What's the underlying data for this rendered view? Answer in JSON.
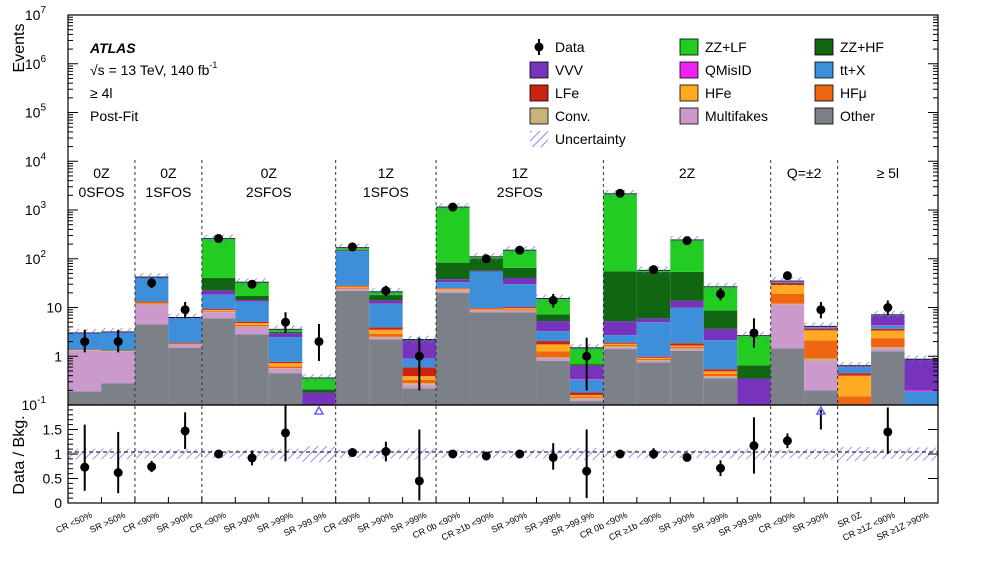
{
  "chart_data": {
    "type": "stacked-bar",
    "annotations": {
      "experiment": "ATLAS",
      "energy": "√s = 13 TeV, 140 fb",
      "energy_sup": "-1",
      "selection": "≥ 4l",
      "stage": "Post-Fit"
    },
    "upper_panel": {
      "ylabel": "Events",
      "yscale": "log",
      "ylim": [
        0.1,
        10000000
      ],
      "yticks": [
        {
          "label": "10",
          "sup": "-1",
          "v": 0.1
        },
        {
          "label": "1",
          "sup": "",
          "v": 1
        },
        {
          "label": "10",
          "sup": "",
          "v": 10
        },
        {
          "label": "10",
          "sup": "2",
          "v": 100
        },
        {
          "label": "10",
          "sup": "3",
          "v": 1000
        },
        {
          "label": "10",
          "sup": "4",
          "v": 10000
        },
        {
          "label": "10",
          "sup": "5",
          "v": 100000
        },
        {
          "label": "10",
          "sup": "6",
          "v": 1000000
        },
        {
          "label": "10",
          "sup": "7",
          "v": 10000000
        }
      ]
    },
    "lower_panel": {
      "ylabel": "Data / Bkg.",
      "ylim": [
        0,
        2
      ],
      "yticks": [
        "0",
        "0.5",
        "1",
        "1.5"
      ]
    },
    "legend": [
      {
        "key": "Data",
        "label": "Data",
        "kind": "marker"
      },
      {
        "key": "ZZLF",
        "label": "ZZ+LF",
        "kind": "fill"
      },
      {
        "key": "ZZHF",
        "label": "ZZ+HF",
        "kind": "fill"
      },
      {
        "key": "VVV",
        "label": "VVV",
        "kind": "fill"
      },
      {
        "key": "QMisID",
        "label": "QMisID",
        "kind": "fill"
      },
      {
        "key": "ttX",
        "label": "tt+X",
        "kind": "fill"
      },
      {
        "key": "LFe",
        "label": "LFe",
        "kind": "fill"
      },
      {
        "key": "HFe",
        "label": "HFe",
        "kind": "fill"
      },
      {
        "key": "HFmu",
        "label": "HFμ",
        "kind": "fill"
      },
      {
        "key": "Conv",
        "label": "Conv.",
        "kind": "fill"
      },
      {
        "key": "Multifakes",
        "label": "Multifakes",
        "kind": "fill"
      },
      {
        "key": "Other",
        "label": "Other",
        "kind": "fill"
      },
      {
        "key": "Unc",
        "label": "Uncertainty",
        "kind": "hatch"
      }
    ],
    "colors": {
      "Other": "#7b8089",
      "Multifakes": "#cc99cc",
      "Conv": "#c8b47a",
      "HFmu": "#ee6611",
      "HFe": "#ffaa22",
      "LFe": "#cc2211",
      "ttX": "#3d8fd9",
      "QMisID": "#ee22ee",
      "VVV": "#7733bb",
      "ZZHF": "#116611",
      "ZZLF": "#22cc22",
      "Unc": "#6666ee"
    },
    "stack_order": [
      "Other",
      "Multifakes",
      "Conv",
      "HFmu",
      "HFe",
      "LFe",
      "ttX",
      "QMisID",
      "VVV",
      "ZZHF",
      "ZZLF"
    ],
    "regions": [
      {
        "line1": "0Z",
        "line2": "0SFOS",
        "bins": [
          0,
          1
        ]
      },
      {
        "line1": "0Z",
        "line2": "1SFOS",
        "bins": [
          2,
          3
        ]
      },
      {
        "line1": "0Z",
        "line2": "2SFOS",
        "bins": [
          4,
          5,
          6,
          7
        ]
      },
      {
        "line1": "1Z",
        "line2": "1SFOS",
        "bins": [
          8,
          9,
          10
        ]
      },
      {
        "line1": "1Z",
        "line2": "2SFOS",
        "bins": [
          11,
          12,
          13,
          14,
          15
        ]
      },
      {
        "line1": "2Z",
        "line2": "",
        "bins": [
          16,
          17,
          18,
          19,
          20
        ]
      },
      {
        "line1": "Q=±2",
        "line2": "",
        "bins": [
          21,
          22
        ]
      },
      {
        "line1": "≥ 5l",
        "line2": "",
        "bins": [
          23,
          24,
          25
        ]
      }
    ],
    "bins": [
      {
        "label": "CR <50%",
        "data": 2,
        "data_err": [
          1.2,
          3.5
        ],
        "ratio": 0.73,
        "ratio_err": [
          0.25,
          1.6
        ],
        "c": {
          "Other": 0.19,
          "Multifakes": 1.1,
          "Conv": 0.02,
          "HFmu": 0.02,
          "HFe": 0.02,
          "LFe": 0.02,
          "ttX": 1.6,
          "QMisID": 0.01,
          "VVV": 0.02,
          "ZZHF": 0.01,
          "ZZLF": 0.01
        }
      },
      {
        "label": "SR >50%",
        "data": 2,
        "data_err": [
          1.2,
          3.5
        ],
        "ratio": 0.62,
        "ratio_err": [
          0.2,
          1.45
        ],
        "c": {
          "Other": 0.28,
          "Multifakes": 0.95,
          "Conv": 0.02,
          "HFmu": 0.02,
          "HFe": 0.02,
          "LFe": 0.02,
          "ttX": 1.8,
          "QMisID": 0.01,
          "VVV": 0.02,
          "ZZHF": 0.01,
          "ZZLF": 0.01
        }
      },
      {
        "label": "CR <90%",
        "data": 32,
        "data_err": [
          25,
          40
        ],
        "ratio": 0.74,
        "ratio_err": [
          0.63,
          0.86
        ],
        "c": {
          "Other": 4.5,
          "Multifakes": 7.0,
          "Conv": 0.2,
          "HFmu": 0.4,
          "HFe": 0.5,
          "LFe": 0.6,
          "ttX": 28,
          "QMisID": 0.1,
          "VVV": 0.4,
          "ZZHF": 0.1,
          "ZZLF": 0.3
        }
      },
      {
        "label": "SR >90%",
        "data": 9,
        "data_err": [
          6,
          13
        ],
        "ratio": 1.47,
        "ratio_err": [
          1.1,
          1.85
        ],
        "c": {
          "Other": 1.5,
          "Multifakes": 0.2,
          "Conv": 0.02,
          "HFmu": 0.05,
          "HFe": 0.05,
          "LFe": 0.05,
          "ttX": 4.3,
          "QMisID": 0.01,
          "VVV": 0.05,
          "ZZHF": 0.01,
          "ZZLF": 0.02
        }
      },
      {
        "label": "CR <90%",
        "data": 260,
        "data_err": [
          240,
          280
        ],
        "ratio": 1.0,
        "ratio_err": [
          0.94,
          1.06
        ],
        "c": {
          "Other": 6,
          "Multifakes": 2,
          "Conv": 0.2,
          "HFmu": 0.3,
          "HFe": 0.4,
          "LFe": 0.4,
          "ttX": 9,
          "QMisID": 0.1,
          "VVV": 4,
          "ZZHF": 18,
          "ZZLF": 220
        }
      },
      {
        "label": "SR >90%",
        "data": 30,
        "data_err": [
          25,
          36
        ],
        "ratio": 0.92,
        "ratio_err": [
          0.77,
          1.07
        ],
        "c": {
          "Other": 2.8,
          "Multifakes": 1.2,
          "Conv": 0.1,
          "HFmu": 0.3,
          "HFe": 0.4,
          "LFe": 0.3,
          "ttX": 8,
          "QMisID": 0.1,
          "VVV": 1.0,
          "ZZHF": 3,
          "ZZLF": 16
        }
      },
      {
        "label": "SR >99%",
        "data": 5,
        "data_err": [
          3,
          8
        ],
        "ratio": 1.43,
        "ratio_err": [
          0.85,
          2.0
        ],
        "c": {
          "Other": 0.45,
          "Multifakes": 0.1,
          "Conv": 0.02,
          "HFmu": 0.05,
          "HFe": 0.1,
          "LFe": 0.05,
          "ttX": 1.7,
          "QMisID": 0.01,
          "VVV": 0.5,
          "ZZHF": 0.2,
          "ZZLF": 0.4
        }
      },
      {
        "label": "SR >99.9%",
        "data": 2,
        "data_err": [
          0.8,
          4.6
        ],
        "ratio": null,
        "ratio_err": null,
        "arrow": true,
        "c": {
          "Other": 0.02,
          "Multifakes": 0.01,
          "Conv": 0.01,
          "HFmu": 0.01,
          "HFe": 0.01,
          "LFe": 0.01,
          "ttX": 0.02,
          "QMisID": 0.01,
          "VVV": 0.08,
          "ZZHF": 0.03,
          "ZZLF": 0.15
        }
      },
      {
        "label": "CR <90%",
        "data": 175,
        "data_err": [
          160,
          190
        ],
        "ratio": 1.03,
        "ratio_err": [
          0.96,
          1.1
        ],
        "c": {
          "Other": 22,
          "Multifakes": 2,
          "Conv": 0.5,
          "HFmu": 1,
          "HFe": 1.5,
          "LFe": 1,
          "ttX": 115,
          "QMisID": 0.2,
          "VVV": 3,
          "ZZHF": 6,
          "ZZLF": 17
        }
      },
      {
        "label": "SR >90%",
        "data": 22,
        "data_err": [
          17,
          28
        ],
        "ratio": 1.05,
        "ratio_err": [
          0.85,
          1.25
        ],
        "c": {
          "Other": 2.2,
          "Multifakes": 0.2,
          "Conv": 0.1,
          "HFmu": 0.4,
          "HFe": 0.6,
          "LFe": 0.4,
          "ttX": 8,
          "QMisID": 0.1,
          "VVV": 2,
          "ZZHF": 4,
          "ZZLF": 3
        }
      },
      {
        "label": "SR >99%",
        "data": 1,
        "data_err": [
          0.2,
          2.4
        ],
        "ratio": 0.45,
        "ratio_err": [
          0.05,
          1.5
        ],
        "c": {
          "Other": 0.22,
          "Multifakes": 0.04,
          "Conv": 0.02,
          "HFmu": 0.05,
          "HFe": 0.06,
          "LFe": 0.2,
          "ttX": 0.3,
          "QMisID": 0.01,
          "VVV": 1.2,
          "ZZHF": 0.05,
          "ZZLF": 0.05
        }
      },
      {
        "label": "CR 0b <90%",
        "data": 1150,
        "data_err": [
          1100,
          1200
        ],
        "ratio": 1.0,
        "ratio_err": [
          0.97,
          1.03
        ],
        "c": {
          "Other": 20,
          "Multifakes": 2,
          "Conv": 1,
          "HFmu": 0.5,
          "HFe": 1,
          "LFe": 0.5,
          "ttX": 8,
          "QMisID": 0.1,
          "VVV": 5,
          "ZZHF": 45,
          "ZZLF": 1070
        }
      },
      {
        "label": "CR ≥1b <90%",
        "data": 100,
        "data_err": [
          90,
          110
        ],
        "ratio": 0.96,
        "ratio_err": [
          0.9,
          1.02
        ],
        "c": {
          "Other": 8,
          "Multifakes": 0.5,
          "Conv": 0.3,
          "HFmu": 0.3,
          "HFe": 0.3,
          "LFe": 0.3,
          "ttX": 45,
          "QMisID": 0.1,
          "VVV": 2,
          "ZZHF": 45,
          "ZZLF": 8
        }
      },
      {
        "label": "SR >90%",
        "data": 150,
        "data_err": [
          138,
          162
        ],
        "ratio": 1.0,
        "ratio_err": [
          0.93,
          1.07
        ],
        "c": {
          "Other": 8,
          "Multifakes": 0.5,
          "Conv": 0.2,
          "HFmu": 0.5,
          "HFe": 0.5,
          "LFe": 0.5,
          "ttX": 20,
          "QMisID": 0.1,
          "VVV": 10,
          "ZZHF": 25,
          "ZZLF": 85
        }
      },
      {
        "label": "SR >99%",
        "data": 14,
        "data_err": [
          10,
          19
        ],
        "ratio": 0.93,
        "ratio_err": [
          0.68,
          1.22
        ],
        "c": {
          "Other": 0.8,
          "Multifakes": 0.1,
          "Conv": 0.05,
          "HFmu": 0.3,
          "HFe": 0.5,
          "LFe": 0.3,
          "ttX": 1.2,
          "QMisID": 0.02,
          "VVV": 2,
          "ZZHF": 2,
          "ZZLF": 8
        }
      },
      {
        "label": "SR >99.9%",
        "data": 1,
        "data_err": [
          0.2,
          2.4
        ],
        "ratio": 0.65,
        "ratio_err": [
          0.1,
          1.5
        ],
        "c": {
          "Other": 0.12,
          "Multifakes": 0.01,
          "Conv": 0.01,
          "HFmu": 0.01,
          "HFe": 0.01,
          "LFe": 0.02,
          "ttX": 0.15,
          "QMisID": 0.01,
          "VVV": 0.3,
          "ZZHF": 0.05,
          "ZZLF": 0.8
        }
      },
      {
        "label": "CR 0b <90%",
        "data": 2200,
        "data_err": [
          2100,
          2300
        ],
        "ratio": 1.0,
        "ratio_err": [
          0.97,
          1.03
        ],
        "c": {
          "Other": 1.4,
          "Multifakes": 0.1,
          "Conv": 0.1,
          "HFmu": 0.1,
          "HFe": 0.1,
          "LFe": 0.1,
          "ttX": 0.8,
          "QMisID": 0.01,
          "VVV": 2.5,
          "ZZHF": 50,
          "ZZLF": 2100
        }
      },
      {
        "label": "CR ≥1b <90%",
        "data": 60,
        "data_err": [
          52,
          68
        ],
        "ratio": 1.0,
        "ratio_err": [
          0.9,
          1.12
        ],
        "c": {
          "Other": 0.75,
          "Multifakes": 0.05,
          "Conv": 0.03,
          "HFmu": 0.05,
          "HFe": 0.05,
          "LFe": 0.05,
          "ttX": 4,
          "QMisID": 0.01,
          "VVV": 1,
          "ZZHF": 48,
          "ZZLF": 4
        }
      },
      {
        "label": "SR >90%",
        "data": 235,
        "data_err": [
          220,
          250
        ],
        "ratio": 0.93,
        "ratio_err": [
          0.88,
          0.98
        ],
        "c": {
          "Other": 1.3,
          "Multifakes": 0.1,
          "Conv": 0.05,
          "HFmu": 0.1,
          "HFe": 0.1,
          "LFe": 0.2,
          "ttX": 8,
          "QMisID": 0.01,
          "VVV": 4,
          "ZZHF": 40,
          "ZZLF": 190
        }
      },
      {
        "label": "SR >99%",
        "data": 19,
        "data_err": [
          14,
          25
        ],
        "ratio": 0.71,
        "ratio_err": [
          0.55,
          0.87
        ],
        "c": {
          "Other": 0.35,
          "Multifakes": 0.02,
          "Conv": 0.02,
          "HFmu": 0.05,
          "HFe": 0.05,
          "LFe": 0.05,
          "ttX": 1.6,
          "QMisID": 0.01,
          "VVV": 1.5,
          "ZZHF": 5,
          "ZZLF": 18
        }
      },
      {
        "label": "SR >99.9%",
        "data": 3,
        "data_err": [
          1.5,
          6
        ],
        "ratio": 1.17,
        "ratio_err": [
          0.6,
          1.75
        ],
        "c": {
          "Other": 0.02,
          "Multifakes": 0.01,
          "Conv": 0.01,
          "HFmu": 0.01,
          "HFe": 0.01,
          "LFe": 0.01,
          "ttX": 0.02,
          "QMisID": 0.01,
          "VVV": 0.25,
          "ZZHF": 0.3,
          "ZZLF": 2.0
        }
      },
      {
        "label": "CR <90%",
        "data": 45,
        "data_err": [
          38,
          52
        ],
        "ratio": 1.27,
        "ratio_err": [
          1.12,
          1.42
        ],
        "c": {
          "Other": 1.45,
          "Multifakes": 10,
          "Conv": 0.5,
          "HFmu": 7,
          "HFe": 10,
          "LFe": 3,
          "ttX": 1.5,
          "QMisID": 0.5,
          "VVV": 0.5,
          "ZZHF": 0.2,
          "ZZLF": 0.3
        }
      },
      {
        "label": "SR >90%",
        "data": 9,
        "data_err": [
          6,
          13
        ],
        "ratio": null,
        "ratio_err": [
          1.5,
          1.9
        ],
        "arrow": true,
        "c": {
          "Other": 0.2,
          "Multifakes": 0.6,
          "Conv": 0.1,
          "HFmu": 1.2,
          "HFe": 1.3,
          "LFe": 0.3,
          "ttX": 0.2,
          "QMisID": 0.05,
          "VVV": 0.1,
          "ZZHF": 0.02,
          "ZZLF": 0.05
        }
      },
      {
        "label": "SR 0Z",
        "data": null,
        "data_err": null,
        "ratio": null,
        "ratio_err": null,
        "c": {
          "Other": 0.01,
          "Multifakes": 0.01,
          "Conv": 0.01,
          "HFmu": 0.12,
          "HFe": 0.25,
          "LFe": 0.05,
          "ttX": 0.15,
          "QMisID": 0.01,
          "VVV": 0.01,
          "ZZHF": 0.01,
          "ZZLF": 0.01
        }
      },
      {
        "label": "CR ≥1Z <90%",
        "data": 10,
        "data_err": [
          7,
          14
        ],
        "ratio": 1.45,
        "ratio_err": [
          1.0,
          1.95
        ],
        "c": {
          "Other": 1.25,
          "Multifakes": 0.2,
          "Conv": 0.1,
          "HFmu": 0.8,
          "HFe": 1.0,
          "LFe": 0.3,
          "ttX": 0.6,
          "QMisID": 0.1,
          "VVV": 2.5,
          "ZZHF": 0.05,
          "ZZLF": 0.2
        }
      },
      {
        "label": "SR ≥1Z >90%",
        "data": null,
        "data_err": null,
        "ratio": null,
        "ratio_err": null,
        "c": {
          "Other": 0.01,
          "Multifakes": 0.01,
          "Conv": 0.01,
          "HFmu": 0.01,
          "HFe": 0.01,
          "LFe": 0.02,
          "ttX": 0.12,
          "QMisID": 0.01,
          "VVV": 0.65,
          "ZZHF": 0.01,
          "ZZLF": 0.01
        }
      }
    ]
  }
}
